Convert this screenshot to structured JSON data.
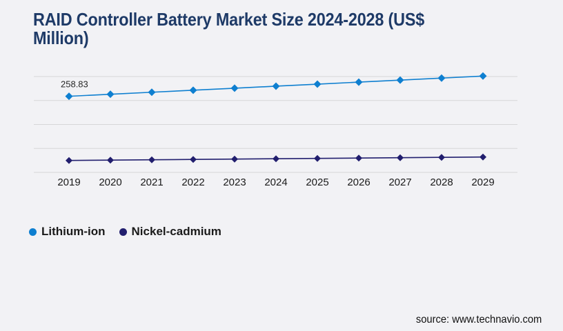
{
  "page": {
    "background": "#f2f2f5",
    "source_text": "source: www.technavio.com"
  },
  "colors": {
    "title": "#1e3a67",
    "gridline": "#d6d6d8",
    "axis_label": "#1a1a1a",
    "data_label": "#262626",
    "legend_text": "#1a1a1a"
  },
  "chart_data": {
    "type": "line",
    "title": "RAID Controller Battery Market Size 2024-2028 (US$ Million)",
    "categories": [
      "2019",
      "2020",
      "2021",
      "2022",
      "2023",
      "2024",
      "2025",
      "2026",
      "2027",
      "2028",
      "2029"
    ],
    "series": [
      {
        "name": "Lithium-ion",
        "color": "#0e7fd0",
        "marker": "diamond",
        "values": [
          258.83,
          263.05,
          267.26,
          271.48,
          275.7,
          279.91,
          284.13,
          288.35,
          292.57,
          296.78,
          301.0
        ]
      },
      {
        "name": "Nickel-cadmium",
        "color": "#211e6e",
        "marker": "diamond",
        "values": [
          124.9,
          125.62,
          126.34,
          127.06,
          127.78,
          128.5,
          129.22,
          129.94,
          130.66,
          131.38,
          132.1
        ]
      }
    ],
    "point_labels": [
      {
        "series_index": 0,
        "point_index": 0,
        "text": "258.83"
      }
    ],
    "xlabel": "",
    "ylabel": "",
    "ylim": [
      100,
      300
    ],
    "gridline_step": 50,
    "grid": "horizontal-only",
    "y_axis_labels_visible": false,
    "legend_position": "bottom-left"
  }
}
